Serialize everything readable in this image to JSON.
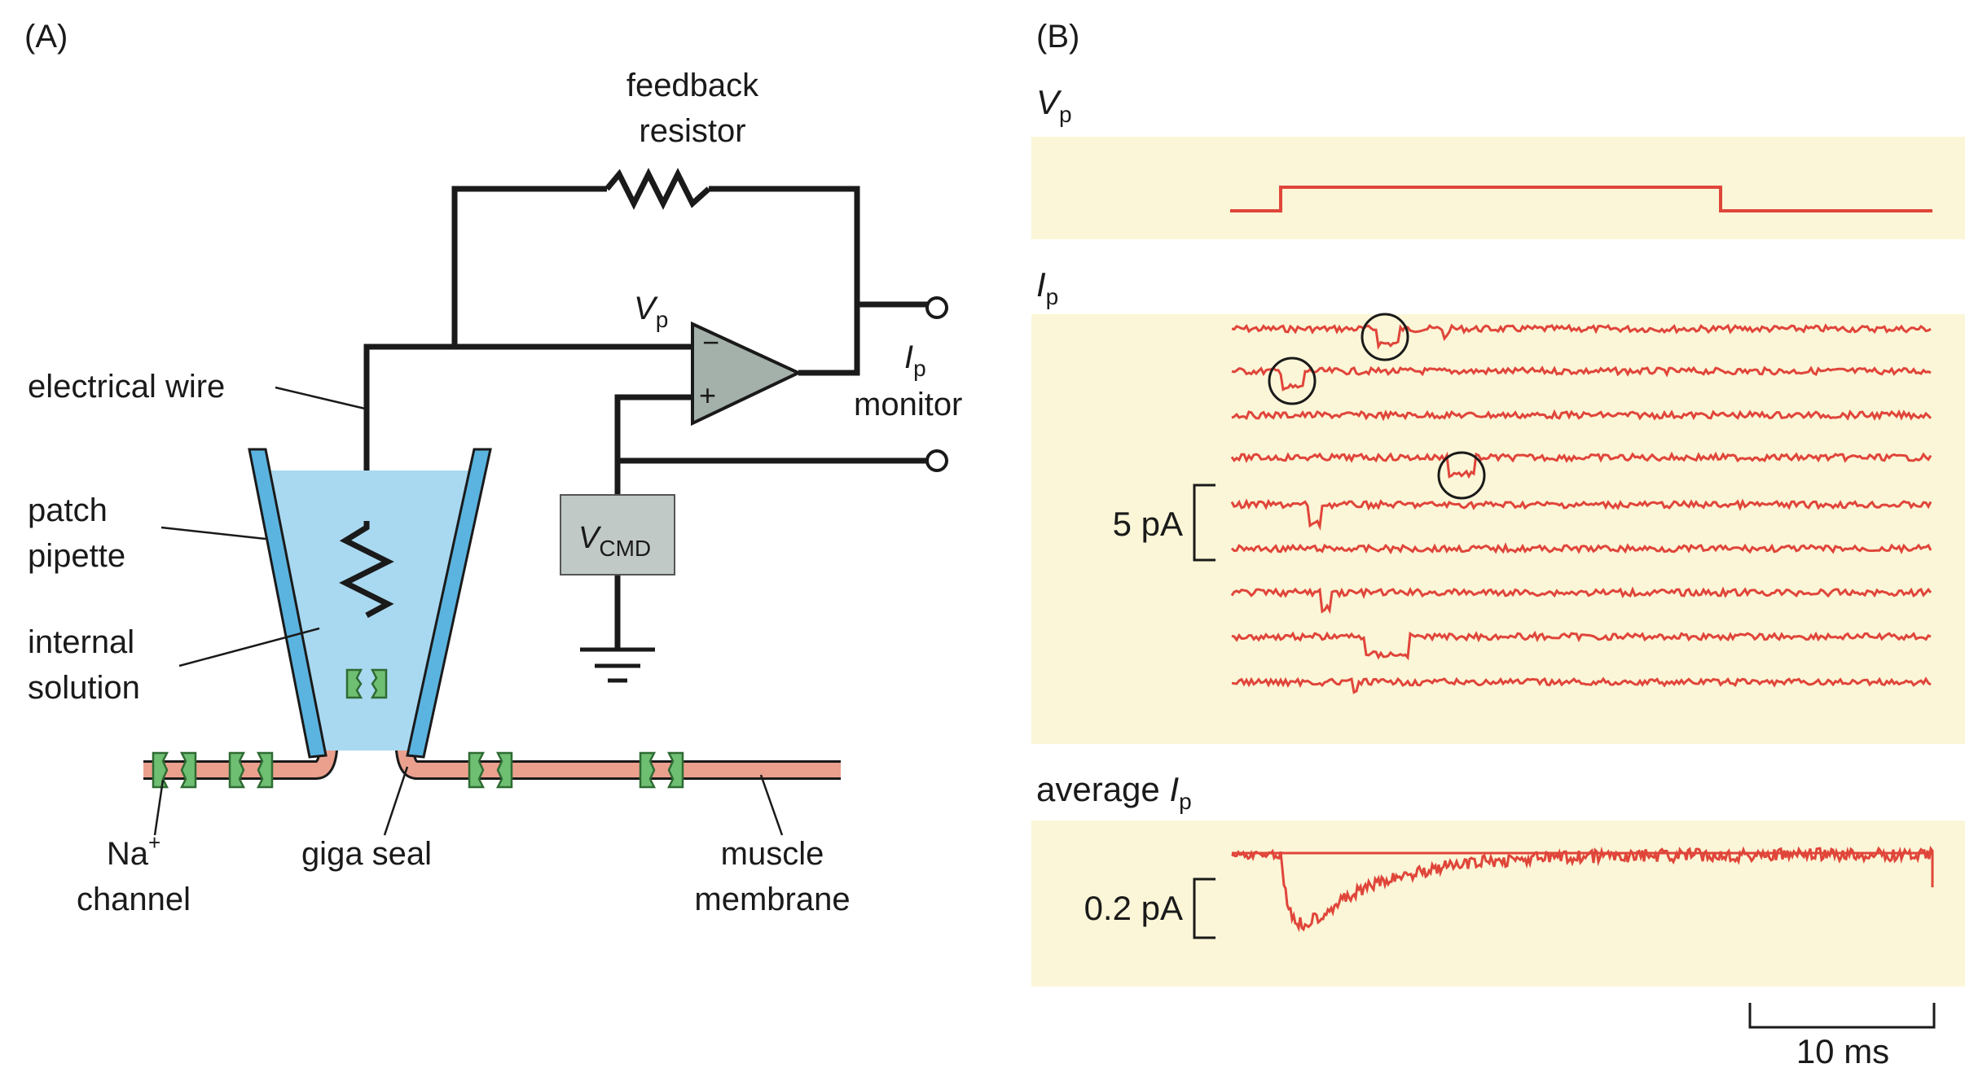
{
  "panel_a": {
    "label": "(A)",
    "feedback_resistor": [
      "feedback",
      "resistor"
    ],
    "vp": {
      "main": "V",
      "sub": "p"
    },
    "ip_monitor": {
      "main": "I",
      "sub": "p",
      "word": "monitor"
    },
    "opamp_minus": "−",
    "opamp_plus": "+",
    "vcmd": {
      "main": "V",
      "sub": "CMD"
    },
    "electrical_wire": "electrical wire",
    "patch_pipette": [
      "patch",
      "pipette"
    ],
    "internal_solution": [
      "internal",
      "solution"
    ],
    "na_channel": {
      "main": "Na",
      "sup": "+",
      "line2": "channel"
    },
    "giga_seal": "giga seal",
    "muscle_membrane": [
      "muscle",
      "membrane"
    ]
  },
  "panel_b": {
    "label": "(B)",
    "vp": {
      "main": "V",
      "sub": "p"
    },
    "ip": {
      "main": "I",
      "sub": "p"
    },
    "average_ip": {
      "prefix": "average ",
      "main": "I",
      "sub": "p"
    },
    "scale_5pa": "5 pA",
    "scale_02pa": "0.2 pA",
    "scale_10ms": "10 ms"
  },
  "colors": {
    "trace": "#e0453a",
    "panel_bg": "#fbf6d7",
    "pipette": "#5bb4e0",
    "solution": "#a9d9f0",
    "membrane": "#eba08e",
    "channel": "#6fbf73",
    "vcmd_box": "#c0c9c6"
  }
}
